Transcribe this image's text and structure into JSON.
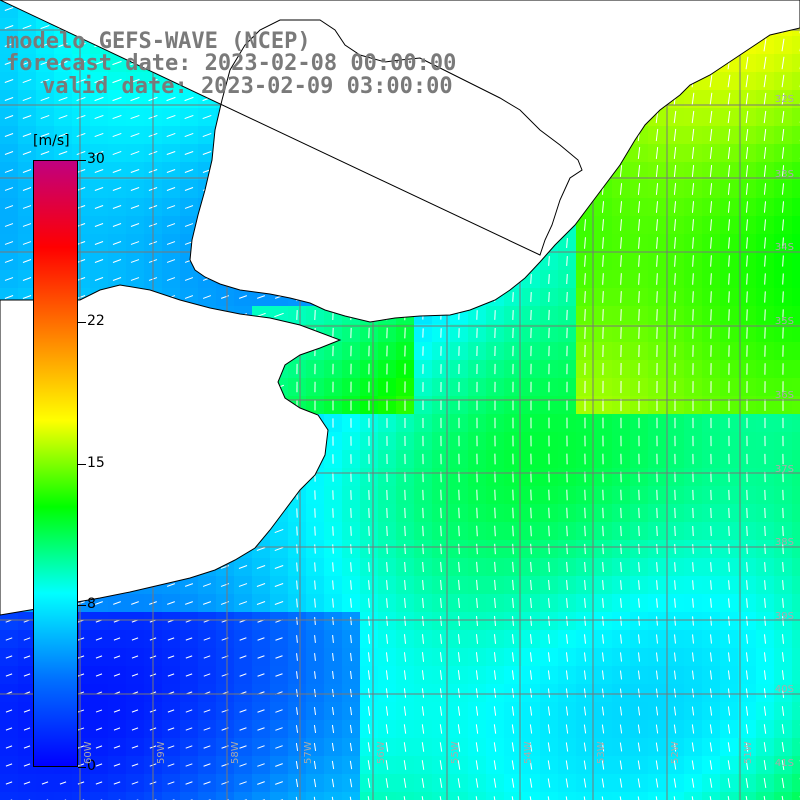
{
  "header": {
    "model_line": "modelo GEFS-WAVE (NCEP)",
    "forecast_line": "forecast date: 2023-02-08 00:00:00",
    "valid_line": "valid date: 2023-02-09 03:00:00"
  },
  "colorbar": {
    "unit": "[m/s]",
    "ticks": [
      {
        "value": 30,
        "label": "30"
      },
      {
        "value": 22,
        "label": "22"
      },
      {
        "value": 15,
        "label": "15"
      },
      {
        "value": 8,
        "label": "8"
      },
      {
        "value": 0,
        "label": "0"
      }
    ],
    "colors": [
      "#0000ff",
      "#0070ff",
      "#00ffff",
      "#00ff00",
      "#ffff00",
      "#ff7f00",
      "#ff0000",
      "#c00080"
    ]
  },
  "grid": {
    "lat_labels": [
      "32S",
      "33S",
      "34S",
      "35S",
      "36S",
      "37S",
      "38S",
      "39S",
      "40S",
      "41S"
    ],
    "lon_labels": [
      "60W",
      "59W",
      "58W",
      "57W",
      "56W",
      "55W",
      "54W",
      "53W",
      "52W",
      "51W"
    ]
  },
  "colors": {
    "coast": "#000000",
    "grid": "#777777",
    "arrow": "#ffffff"
  }
}
